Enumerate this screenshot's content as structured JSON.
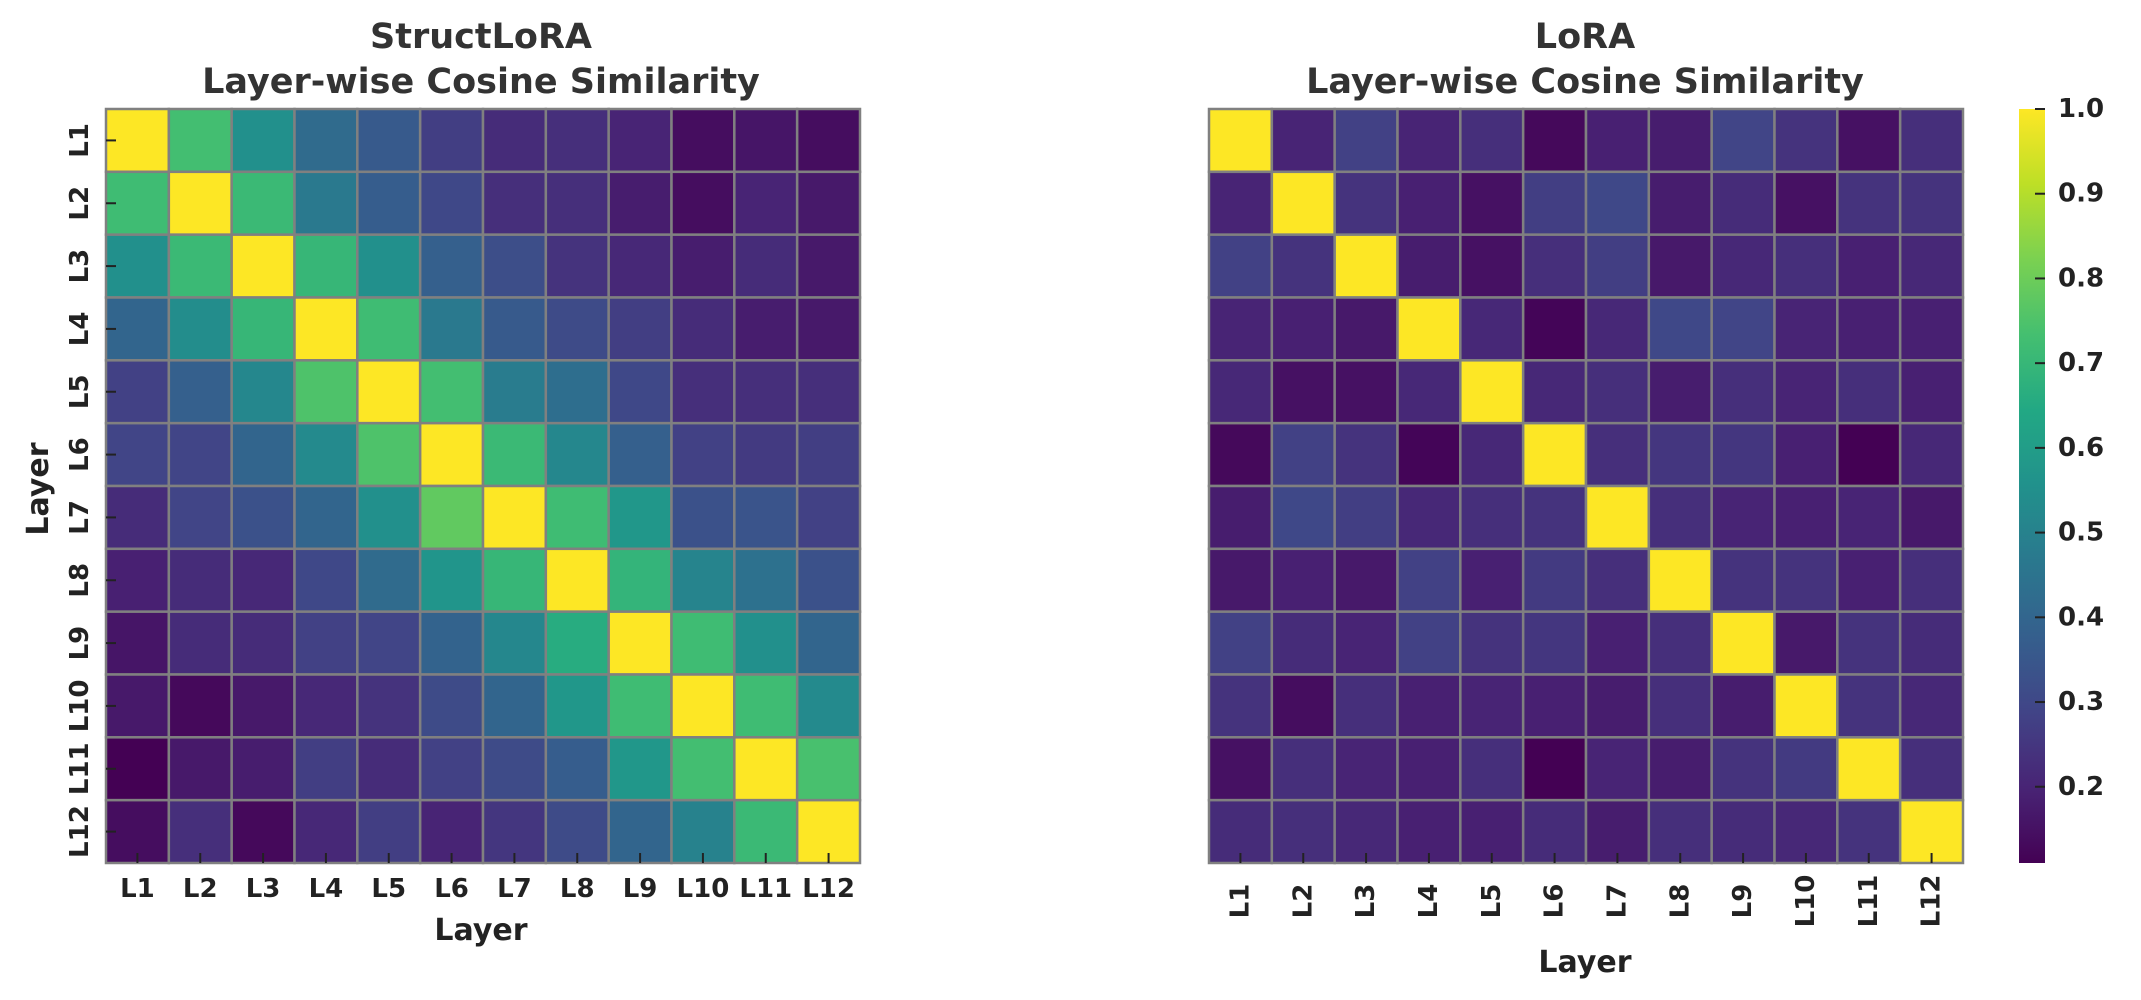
{
  "chart_data": [
    {
      "type": "heatmap",
      "title": [
        "StructLoRA",
        "Layer-wise Cosine Similarity"
      ],
      "xlabel": "Layer",
      "ylabel": "Layer",
      "x_tick_labels": [
        "L1",
        "L2",
        "L3",
        "L4",
        "L5",
        "L6",
        "L7",
        "L8",
        "L9",
        "L10",
        "L11",
        "L12"
      ],
      "y_tick_labels": [
        "L1",
        "L2",
        "L3",
        "L4",
        "L5",
        "L6",
        "L7",
        "L8",
        "L9",
        "L10",
        "L11",
        "L12"
      ],
      "colormap": "viridis",
      "values": [
        [
          1.0,
          0.73,
          0.55,
          0.42,
          0.36,
          0.27,
          0.22,
          0.23,
          0.2,
          0.14,
          0.16,
          0.14
        ],
        [
          0.72,
          1.0,
          0.71,
          0.47,
          0.37,
          0.3,
          0.23,
          0.23,
          0.18,
          0.14,
          0.2,
          0.17
        ],
        [
          0.55,
          0.71,
          1.0,
          0.7,
          0.55,
          0.38,
          0.32,
          0.24,
          0.21,
          0.18,
          0.22,
          0.17
        ],
        [
          0.4,
          0.54,
          0.7,
          1.0,
          0.72,
          0.47,
          0.36,
          0.31,
          0.27,
          0.22,
          0.18,
          0.17
        ],
        [
          0.28,
          0.38,
          0.52,
          0.75,
          1.0,
          0.73,
          0.48,
          0.43,
          0.3,
          0.23,
          0.23,
          0.23
        ],
        [
          0.29,
          0.29,
          0.4,
          0.53,
          0.75,
          1.0,
          0.71,
          0.52,
          0.38,
          0.28,
          0.26,
          0.27
        ],
        [
          0.22,
          0.29,
          0.33,
          0.4,
          0.55,
          0.78,
          1.0,
          0.72,
          0.58,
          0.33,
          0.34,
          0.28
        ],
        [
          0.19,
          0.22,
          0.21,
          0.3,
          0.42,
          0.57,
          0.7,
          1.0,
          0.69,
          0.51,
          0.44,
          0.33
        ],
        [
          0.16,
          0.22,
          0.22,
          0.28,
          0.29,
          0.39,
          0.52,
          0.66,
          1.0,
          0.72,
          0.55,
          0.4
        ],
        [
          0.17,
          0.13,
          0.17,
          0.21,
          0.24,
          0.31,
          0.4,
          0.58,
          0.72,
          1.0,
          0.72,
          0.53
        ],
        [
          0.11,
          0.17,
          0.18,
          0.27,
          0.22,
          0.28,
          0.31,
          0.37,
          0.58,
          0.73,
          1.0,
          0.74
        ],
        [
          0.14,
          0.23,
          0.13,
          0.21,
          0.27,
          0.2,
          0.25,
          0.31,
          0.4,
          0.5,
          0.71,
          1.0
        ]
      ]
    },
    {
      "type": "heatmap",
      "title": [
        "LoRA",
        "Layer-wise Cosine Similarity"
      ],
      "xlabel": "Layer",
      "ylabel": "",
      "x_tick_labels": [
        "L1",
        "L2",
        "L3",
        "L4",
        "L5",
        "L6",
        "L7",
        "L8",
        "L9",
        "L10",
        "L11",
        "L12"
      ],
      "y_tick_labels": [],
      "colormap": "viridis",
      "values": [
        [
          1.0,
          0.2,
          0.28,
          0.2,
          0.23,
          0.13,
          0.19,
          0.18,
          0.29,
          0.24,
          0.15,
          0.23
        ],
        [
          0.2,
          1.0,
          0.24,
          0.19,
          0.15,
          0.27,
          0.3,
          0.18,
          0.22,
          0.15,
          0.24,
          0.24
        ],
        [
          0.28,
          0.24,
          1.0,
          0.18,
          0.15,
          0.23,
          0.27,
          0.17,
          0.21,
          0.23,
          0.19,
          0.21
        ],
        [
          0.2,
          0.19,
          0.17,
          1.0,
          0.21,
          0.12,
          0.21,
          0.3,
          0.29,
          0.2,
          0.19,
          0.19
        ],
        [
          0.21,
          0.15,
          0.15,
          0.21,
          1.0,
          0.21,
          0.23,
          0.18,
          0.23,
          0.2,
          0.23,
          0.19
        ],
        [
          0.13,
          0.28,
          0.24,
          0.12,
          0.21,
          1.0,
          0.23,
          0.25,
          0.25,
          0.19,
          0.11,
          0.21
        ],
        [
          0.18,
          0.3,
          0.27,
          0.21,
          0.23,
          0.24,
          1.0,
          0.23,
          0.2,
          0.19,
          0.2,
          0.17
        ],
        [
          0.17,
          0.19,
          0.17,
          0.28,
          0.19,
          0.26,
          0.23,
          1.0,
          0.24,
          0.24,
          0.19,
          0.23
        ],
        [
          0.28,
          0.22,
          0.2,
          0.28,
          0.24,
          0.25,
          0.19,
          0.23,
          1.0,
          0.17,
          0.24,
          0.22
        ],
        [
          0.24,
          0.14,
          0.23,
          0.19,
          0.2,
          0.19,
          0.18,
          0.23,
          0.18,
          1.0,
          0.24,
          0.21
        ],
        [
          0.15,
          0.23,
          0.2,
          0.19,
          0.23,
          0.11,
          0.2,
          0.18,
          0.24,
          0.26,
          1.0,
          0.23
        ],
        [
          0.22,
          0.23,
          0.21,
          0.19,
          0.19,
          0.22,
          0.18,
          0.23,
          0.22,
          0.21,
          0.24,
          1.0
        ]
      ]
    }
  ],
  "colorbar": {
    "range": [
      0.11,
      1.0
    ],
    "ticks": [
      "0.2",
      "0.3",
      "0.4",
      "0.5",
      "0.6",
      "0.7",
      "0.8",
      "0.9",
      "1.0"
    ],
    "cell_border_color": "#808080"
  }
}
